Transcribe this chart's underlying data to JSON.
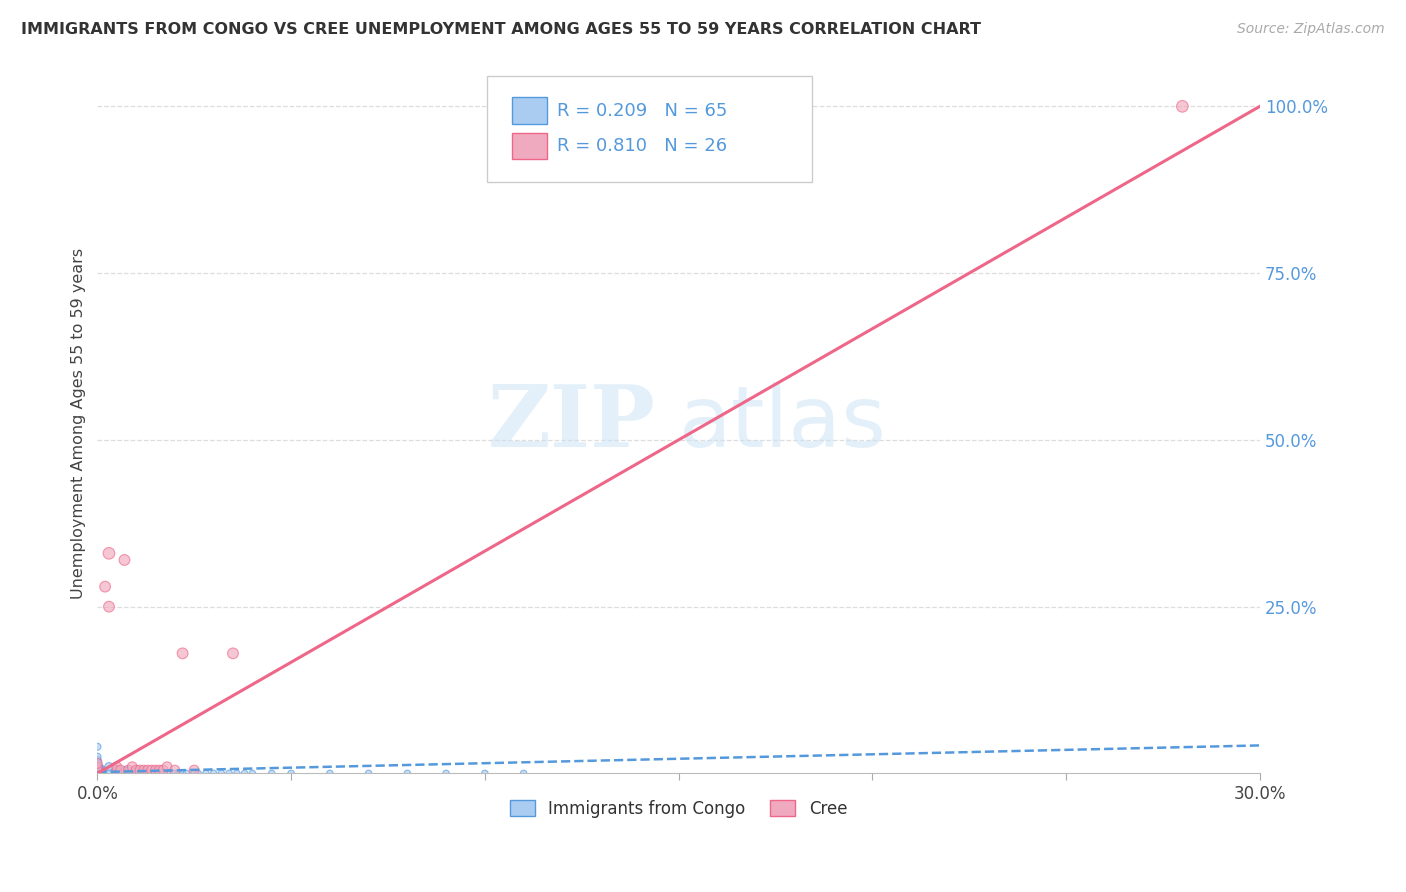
{
  "title": "IMMIGRANTS FROM CONGO VS CREE UNEMPLOYMENT AMONG AGES 55 TO 59 YEARS CORRELATION CHART",
  "source": "Source: ZipAtlas.com",
  "ylabel": "Unemployment Among Ages 55 to 59 years",
  "xlim": [
    0,
    0.3
  ],
  "ylim": [
    0,
    1.05
  ],
  "x_ticks": [
    0.0,
    0.05,
    0.1,
    0.15,
    0.2,
    0.25,
    0.3
  ],
  "x_tick_labels": [
    "0.0%",
    "",
    "",
    "",
    "",
    "",
    "30.0%"
  ],
  "y_ticks": [
    0.0,
    0.25,
    0.5,
    0.75,
    1.0
  ],
  "y_tick_labels": [
    "",
    "25.0%",
    "50.0%",
    "75.0%",
    "100.0%"
  ],
  "legend_congo": "R = 0.209   N = 65",
  "legend_cree": "R = 0.810   N = 26",
  "watermark_zip": "ZIP",
  "watermark_atlas": "atlas",
  "congo_color": "#aaccf0",
  "cree_color": "#f0aabf",
  "congo_line_color": "#5599dd",
  "cree_line_color": "#ee6688",
  "congo_scatter_x": [
    0.0,
    0.0,
    0.0,
    0.0,
    0.0,
    0.0,
    0.0,
    0.0,
    0.0,
    0.0,
    0.0,
    0.0,
    0.0,
    0.0,
    0.0,
    0.0,
    0.0,
    0.0,
    0.0,
    0.0,
    0.0,
    0.0,
    0.0,
    0.003,
    0.003,
    0.005,
    0.005,
    0.006,
    0.007,
    0.008,
    0.008,
    0.009,
    0.01,
    0.01,
    0.011,
    0.012,
    0.012,
    0.013,
    0.014,
    0.015,
    0.015,
    0.016,
    0.017,
    0.018,
    0.02,
    0.021,
    0.022,
    0.023,
    0.025,
    0.026,
    0.028,
    0.03,
    0.032,
    0.034,
    0.036,
    0.038,
    0.04,
    0.045,
    0.05,
    0.06,
    0.07,
    0.08,
    0.09,
    0.1,
    0.11
  ],
  "congo_scatter_y": [
    0.0,
    0.0,
    0.0,
    0.0,
    0.0,
    0.0,
    0.0,
    0.0,
    0.0,
    0.0,
    0.005,
    0.005,
    0.008,
    0.008,
    0.01,
    0.01,
    0.012,
    0.012,
    0.015,
    0.018,
    0.02,
    0.025,
    0.04,
    0.0,
    0.01,
    0.0,
    0.005,
    0.0,
    0.005,
    0.0,
    0.005,
    0.0,
    0.0,
    0.005,
    0.0,
    0.0,
    0.005,
    0.0,
    0.0,
    0.0,
    0.005,
    0.0,
    0.0,
    0.0,
    0.0,
    0.0,
    0.0,
    0.0,
    0.0,
    0.0,
    0.0,
    0.0,
    0.0,
    0.0,
    0.0,
    0.0,
    0.0,
    0.0,
    0.0,
    0.0,
    0.0,
    0.0,
    0.0,
    0.0,
    0.0
  ],
  "congo_sizes": [
    200,
    160,
    130,
    120,
    100,
    90,
    80,
    75,
    70,
    65,
    60,
    55,
    50,
    45,
    42,
    40,
    38,
    36,
    34,
    32,
    30,
    28,
    26,
    40,
    36,
    32,
    30,
    28,
    26,
    24,
    22,
    22,
    22,
    22,
    22,
    22,
    22,
    22,
    22,
    22,
    22,
    22,
    22,
    22,
    22,
    22,
    22,
    22,
    22,
    22,
    22,
    22,
    22,
    22,
    22,
    22,
    22,
    22,
    22,
    22,
    22,
    22,
    22,
    22,
    22
  ],
  "cree_scatter_x": [
    0.0,
    0.0,
    0.0,
    0.002,
    0.003,
    0.003,
    0.005,
    0.005,
    0.006,
    0.007,
    0.008,
    0.009,
    0.01,
    0.011,
    0.012,
    0.013,
    0.014,
    0.015,
    0.016,
    0.017,
    0.018,
    0.02,
    0.022,
    0.025,
    0.035,
    0.28
  ],
  "cree_scatter_y": [
    0.005,
    0.01,
    0.015,
    0.28,
    0.33,
    0.25,
    0.005,
    0.01,
    0.005,
    0.32,
    0.005,
    0.01,
    0.005,
    0.005,
    0.005,
    0.005,
    0.005,
    0.005,
    0.005,
    0.005,
    0.01,
    0.005,
    0.18,
    0.005,
    0.18,
    1.0
  ],
  "cree_sizes": [
    50,
    50,
    50,
    60,
    70,
    60,
    50,
    50,
    50,
    60,
    50,
    50,
    50,
    50,
    50,
    50,
    50,
    50,
    50,
    50,
    50,
    50,
    60,
    50,
    60,
    70
  ],
  "congo_regline_x": [
    0.0,
    0.3
  ],
  "congo_regline_y": [
    0.002,
    0.042
  ],
  "cree_regline_x": [
    0.0,
    0.3
  ],
  "cree_regline_y": [
    0.0,
    1.0
  ]
}
